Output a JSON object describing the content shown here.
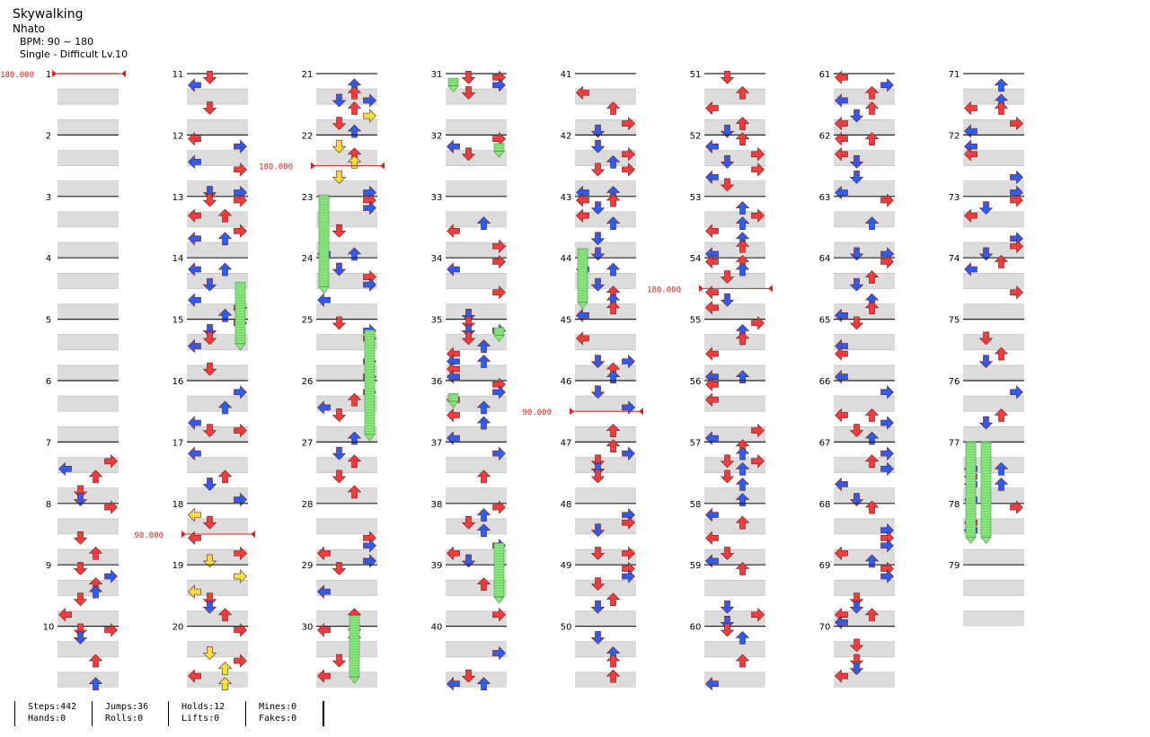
{
  "song": {
    "title": "Skywalking",
    "artist": "Nhato",
    "bpm_line": "BPM: 90 ~ 180",
    "difficulty_line": "Single - Difficult Lv.10"
  },
  "colors": {
    "red_arrow": "#f23c3c",
    "blue_arrow": "#2e5cf0",
    "yellow_arrow": "#f0e040",
    "hold_green": "#88e87e",
    "band_gray": "#dcdcdc",
    "bpm_marker": "#dd2222"
  },
  "measures": [
    "1",
    "2",
    "3",
    "4",
    "5",
    "6",
    "7",
    "8",
    "9",
    "10",
    "11",
    "12",
    "13",
    "14",
    "15",
    "16",
    "17",
    "18",
    "19",
    "20",
    "21",
    "22",
    "23",
    "24",
    "25",
    "26",
    "27",
    "28",
    "29",
    "30",
    "31",
    "32",
    "33",
    "34",
    "35",
    "36",
    "37",
    "38",
    "39",
    "40",
    "41",
    "42",
    "43",
    "44",
    "45",
    "46",
    "47",
    "48",
    "49",
    "50",
    "51",
    "52",
    "53",
    "54",
    "55",
    "56",
    "57",
    "58",
    "59",
    "60",
    "61",
    "62",
    "63",
    "64",
    "65",
    "66",
    "67",
    "68",
    "69",
    "70",
    "71",
    "72",
    "73",
    "74",
    "75",
    "76",
    "77",
    "78",
    "79"
  ],
  "bpm_changes": [
    {
      "label": "180.000",
      "measure": 1,
      "beat": 0
    },
    {
      "label": "90.000",
      "measure": 18,
      "beat": 2
    },
    {
      "label": "180.000",
      "measure": 22,
      "beat": 2
    },
    {
      "label": "90.000",
      "measure": 46,
      "beat": 2
    },
    {
      "label": "180.000",
      "measure": 54,
      "beat": 2
    }
  ],
  "stats": {
    "steps": "Steps:442",
    "hands": "Hands:0",
    "jumps": "Jumps:36",
    "rolls": "Rolls:0",
    "holds": "Holds:12",
    "lifts": "Lifts:0",
    "mines": "Mines:0",
    "fakes": "Fakes:0"
  }
}
